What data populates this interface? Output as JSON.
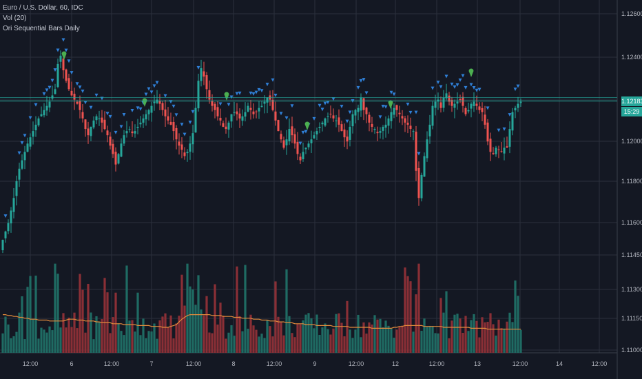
{
  "legend": {
    "line1": "Euro / U.S. Dollar, 60, IDC",
    "line2": "Vol (20)",
    "line3": "Ori Sequential Bars Daily"
  },
  "last_price_label": "1.12183",
  "countdown_label": "15:29",
  "colors": {
    "background": "#141823",
    "grid": "#2b303c",
    "up": "#26a69a",
    "down": "#ef5350",
    "vol_up": "#1f6b63",
    "vol_down": "#8a2f36",
    "vol_ma": "#e38b3c",
    "marker": "#2f7fd6",
    "marker_text": "#4e8fd8",
    "signal": "#4caf50",
    "axis_text": "#b2b5be",
    "price_line": "#26a69a"
  },
  "chart_data": {
    "type": "candlestick",
    "title": "Euro / U.S. Dollar, 60, IDC",
    "indicators": [
      "Vol (20)",
      "Ori Sequential Bars Daily"
    ],
    "y_ticks": [
      "1.12600",
      "1.12400",
      "1.12000",
      "1.11800",
      "1.11600",
      "1.11450",
      "1.11300",
      "1.11150",
      "1.11000"
    ],
    "x_ticks": [
      "12:00",
      "6",
      "12:00",
      "7",
      "12:00",
      "8",
      "12:00",
      "9",
      "12:00",
      "12",
      "12:00",
      "13",
      "12:00",
      "14",
      "12:00"
    ],
    "last_price": 1.12183,
    "grid": true,
    "close_series": [
      1.1152,
      1.1156,
      1.116,
      1.1166,
      1.1172,
      1.118,
      1.1186,
      1.119,
      1.1194,
      1.1198,
      1.1201,
      1.1204,
      1.1207,
      1.121,
      1.1212,
      1.1214,
      1.1216,
      1.1218,
      1.1221,
      1.1224,
      1.1236,
      1.124,
      1.1233,
      1.1228,
      1.1224,
      1.1221,
      1.1219,
      1.1217,
      1.1214,
      1.121,
      1.1205,
      1.1202,
      1.1206,
      1.1209,
      1.1211,
      1.121,
      1.1208,
      1.1205,
      1.1202,
      1.1197,
      1.1193,
      1.1188,
      1.1193,
      1.1198,
      1.1202,
      1.1204,
      1.1205,
      1.1203,
      1.1204,
      1.1206,
      1.1208,
      1.121,
      1.1212,
      1.1214,
      1.1216,
      1.1218,
      1.1219,
      1.1217,
      1.1214,
      1.1211,
      1.1209,
      1.1207,
      1.1204,
      1.12,
      1.1197,
      1.1195,
      1.1192,
      1.1194,
      1.1198,
      1.1203,
      1.1215,
      1.1228,
      1.1234,
      1.123,
      1.1224,
      1.1219,
      1.1216,
      1.1214,
      1.1211,
      1.1209,
      1.1206,
      1.1205,
      1.1208,
      1.1212,
      1.1213,
      1.1212,
      1.121,
      1.1211,
      1.1213,
      1.1216,
      1.1214,
      1.1212,
      1.1213,
      1.1215,
      1.1216,
      1.1218,
      1.122,
      1.1219,
      1.1214,
      1.1209,
      1.1204,
      1.12,
      1.1196,
      1.12,
      1.1205,
      1.1202,
      1.1198,
      1.1193,
      1.119,
      1.1194,
      1.1196,
      1.1198,
      1.12,
      1.1202,
      1.1204,
      1.1206,
      1.1208,
      1.121,
      1.1211,
      1.1212,
      1.121,
      1.1209,
      1.1207,
      1.1204,
      1.1201,
      1.1199,
      1.1206,
      1.1212,
      1.1214,
      1.1215,
      1.122,
      1.1214,
      1.1212,
      1.1208,
      1.1206,
      1.1205,
      1.1203,
      1.1204,
      1.1206,
      1.1207,
      1.121,
      1.1213,
      1.1215,
      1.1214,
      1.1212,
      1.121,
      1.1208,
      1.1207,
      1.1205,
      1.1204,
      1.1185,
      1.1172,
      1.1183,
      1.1192,
      1.12,
      1.1207,
      1.1216,
      1.1218,
      1.1219,
      1.1215,
      1.122,
      1.1222,
      1.1218,
      1.1216,
      1.1217,
      1.1218,
      1.1219,
      1.1216,
      1.1212,
      1.1214,
      1.1217,
      1.1218,
      1.1216,
      1.1214,
      1.1213,
      1.1207,
      1.1199,
      1.1194,
      1.1193,
      1.1196,
      1.1195,
      1.1194,
      1.1196,
      1.1196,
      1.1205,
      1.1213,
      1.1215,
      1.1217,
      1.1218
    ],
    "volume_range": [
      0,
      100
    ],
    "volume_ma": [
      42,
      42,
      41,
      41,
      40,
      40,
      39,
      39,
      38,
      38,
      37,
      37,
      37,
      36,
      36,
      36,
      36,
      35,
      35,
      35,
      35,
      35,
      35,
      36,
      37,
      37,
      37,
      36,
      36,
      36,
      35,
      35,
      35,
      35,
      34,
      34,
      33,
      33,
      33,
      33,
      32,
      32,
      32,
      32,
      31,
      31,
      31,
      31,
      31,
      30,
      30,
      30,
      30,
      30,
      29,
      29,
      29,
      29,
      28,
      28,
      28,
      29,
      30,
      31,
      34,
      37,
      39,
      41,
      42,
      42,
      42,
      42,
      42,
      42,
      42,
      42,
      41,
      41,
      41,
      41,
      40,
      40,
      40,
      40,
      39,
      39,
      39,
      38,
      38,
      38,
      38,
      37,
      37,
      37,
      36,
      36,
      36,
      35,
      35,
      35,
      34,
      34,
      34,
      33,
      33,
      33,
      32,
      32,
      32,
      32,
      31,
      31,
      31,
      31,
      30,
      30,
      30,
      30,
      30,
      30,
      29,
      29,
      29,
      29,
      29,
      29,
      28,
      28,
      28,
      28,
      28,
      28,
      28,
      28,
      27,
      27,
      27,
      27,
      27,
      27,
      27,
      27,
      28,
      28,
      29,
      29,
      30,
      30,
      30,
      30,
      30,
      30,
      30,
      29,
      29,
      29,
      29,
      29,
      29,
      29,
      28,
      28,
      28,
      28,
      28,
      28,
      28,
      28,
      28,
      28,
      27,
      27,
      27,
      27,
      27,
      27,
      26,
      26,
      26,
      26,
      26,
      26,
      26,
      26,
      26,
      26,
      26,
      26,
      26
    ]
  }
}
